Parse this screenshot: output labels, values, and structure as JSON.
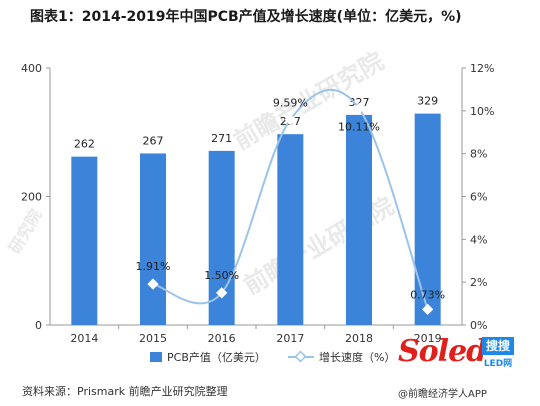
{
  "title": "图表1：2014-2019年中国PCB产值及增长速度(单位：亿美元，%)",
  "source": "资料来源：Prismark 前瞻产业研究院整理",
  "credit": "@前瞻经济学人APP",
  "logo": {
    "word": "Soled",
    "badge": "搜搜",
    "sub": "LED网"
  },
  "watermarks": [
    "前瞻产业研究院",
    "前瞻产业研究院",
    "研究院"
  ],
  "chart_data": {
    "type": "bar",
    "categories": [
      "2014",
      "2015",
      "2016",
      "2017",
      "2018",
      "2019"
    ],
    "series": [
      {
        "name": "PCB产值（亿美元）",
        "type": "bar",
        "axis": "left",
        "color": "#3b84d9",
        "values": [
          262,
          267,
          271,
          297,
          327,
          329
        ],
        "labels": [
          "262",
          "267",
          "271",
          "297",
          "327",
          "329"
        ]
      },
      {
        "name": "增长速度（%）",
        "type": "line",
        "axis": "right",
        "color": "#9cc3ea",
        "values": [
          null,
          1.91,
          1.5,
          9.59,
          10.11,
          0.73
        ],
        "labels": [
          "",
          "1.91%",
          "1.50%",
          "9.59%",
          "10.11%",
          "0.73%"
        ]
      }
    ],
    "ylim_left": [
      0,
      400
    ],
    "yticks_left": [
      "0",
      "200",
      "400"
    ],
    "ylim_right": [
      0,
      12
    ],
    "yticks_right": [
      "0%",
      "2%",
      "4%",
      "6%",
      "8%",
      "10%",
      "12%"
    ],
    "legend_position": "bottom"
  }
}
